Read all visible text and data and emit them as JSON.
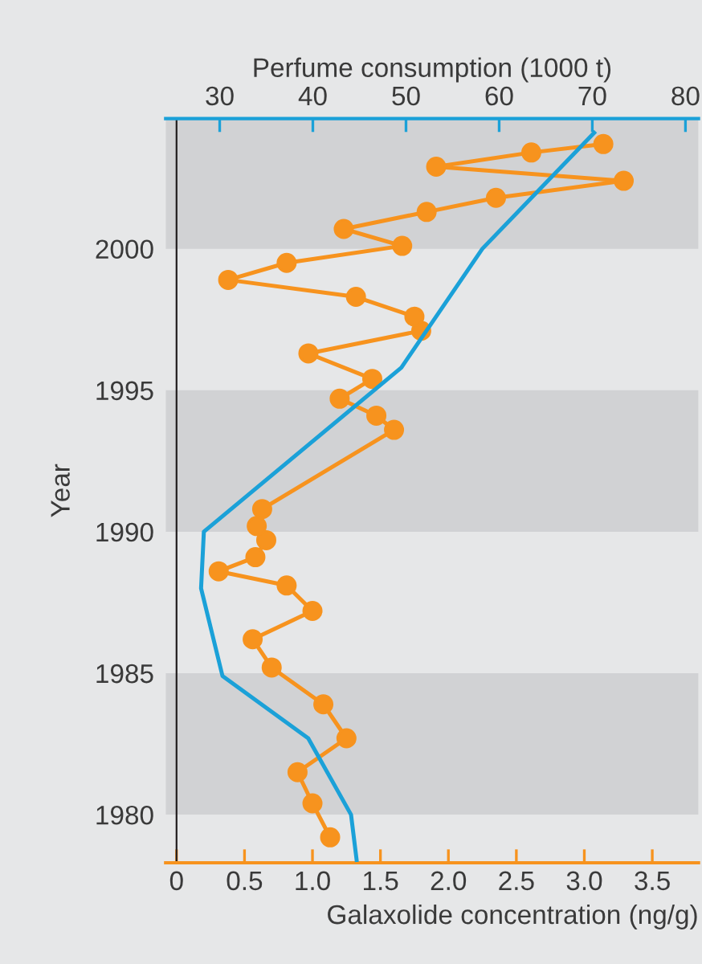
{
  "chart_data": {
    "type": "line",
    "xlabel": "Galaxolide concentration (ng/g)",
    "x2label": "Perfume consumption (1000 t)",
    "ylabel": "Year",
    "xlim": [
      -0.08,
      3.84
    ],
    "xticks": [
      {
        "value": 0,
        "label": "0"
      },
      0.5,
      {
        "value": 1.0,
        "label": "1.0"
      },
      1.5,
      {
        "value": 2.0,
        "label": "2.0"
      },
      2.5,
      {
        "value": 3.0,
        "label": "3.0"
      },
      3.5
    ],
    "x2lim": [
      24.2,
      81.4
    ],
    "x2ticks": [
      30,
      40,
      50,
      60,
      70,
      80
    ],
    "ylim": [
      1978.3,
      2004.6
    ],
    "yticks": [
      1980,
      1985,
      1990,
      1995,
      2000
    ],
    "grid": false,
    "bands": [
      {
        "axis": "y",
        "from": 1980,
        "to": 1985,
        "color": "#d1d2d4"
      },
      {
        "axis": "y",
        "from": 1990,
        "to": 1995,
        "color": "#d1d2d4"
      },
      {
        "axis": "y",
        "from": 2000,
        "to": 2004.6,
        "color": "#d1d2d4"
      }
    ],
    "series": [
      {
        "color": "#f7931e",
        "marker": "circle",
        "x": [
          1.13,
          1.0,
          0.89,
          1.25,
          1.08,
          0.7,
          0.56,
          1.0,
          0.81,
          0.31,
          0.58,
          0.66,
          0.59,
          0.63,
          1.6,
          1.47,
          1.2,
          1.44,
          0.97,
          1.8,
          1.75,
          1.32,
          0.38,
          0.81,
          1.66,
          1.23,
          1.84,
          2.35,
          3.29,
          1.91,
          2.61,
          3.14
        ],
        "values": [
          1979.2,
          1980.4,
          1981.5,
          1982.7,
          1983.9,
          1985.2,
          1986.2,
          1987.2,
          1988.1,
          1988.6,
          1989.1,
          1989.7,
          1990.2,
          1990.8,
          1993.6,
          1994.1,
          1994.7,
          1995.4,
          1996.3,
          1997.1,
          1997.6,
          1998.3,
          1998.9,
          1999.5,
          2000.1,
          2000.7,
          2001.3,
          2001.8,
          2002.4,
          2002.9,
          2003.4,
          2003.7
        ]
      },
      {
        "color": "#1ba1d8",
        "marker": "none",
        "axis": "x2",
        "x": [
          44.7,
          44.1,
          39.5,
          30.3,
          28.0,
          28.3,
          49.5,
          58.2,
          70.2
        ],
        "values": [
          1978.4,
          1980.0,
          1982.7,
          1984.9,
          1988.0,
          1990.0,
          1995.8,
          2000.0,
          2004.1
        ]
      }
    ]
  }
}
